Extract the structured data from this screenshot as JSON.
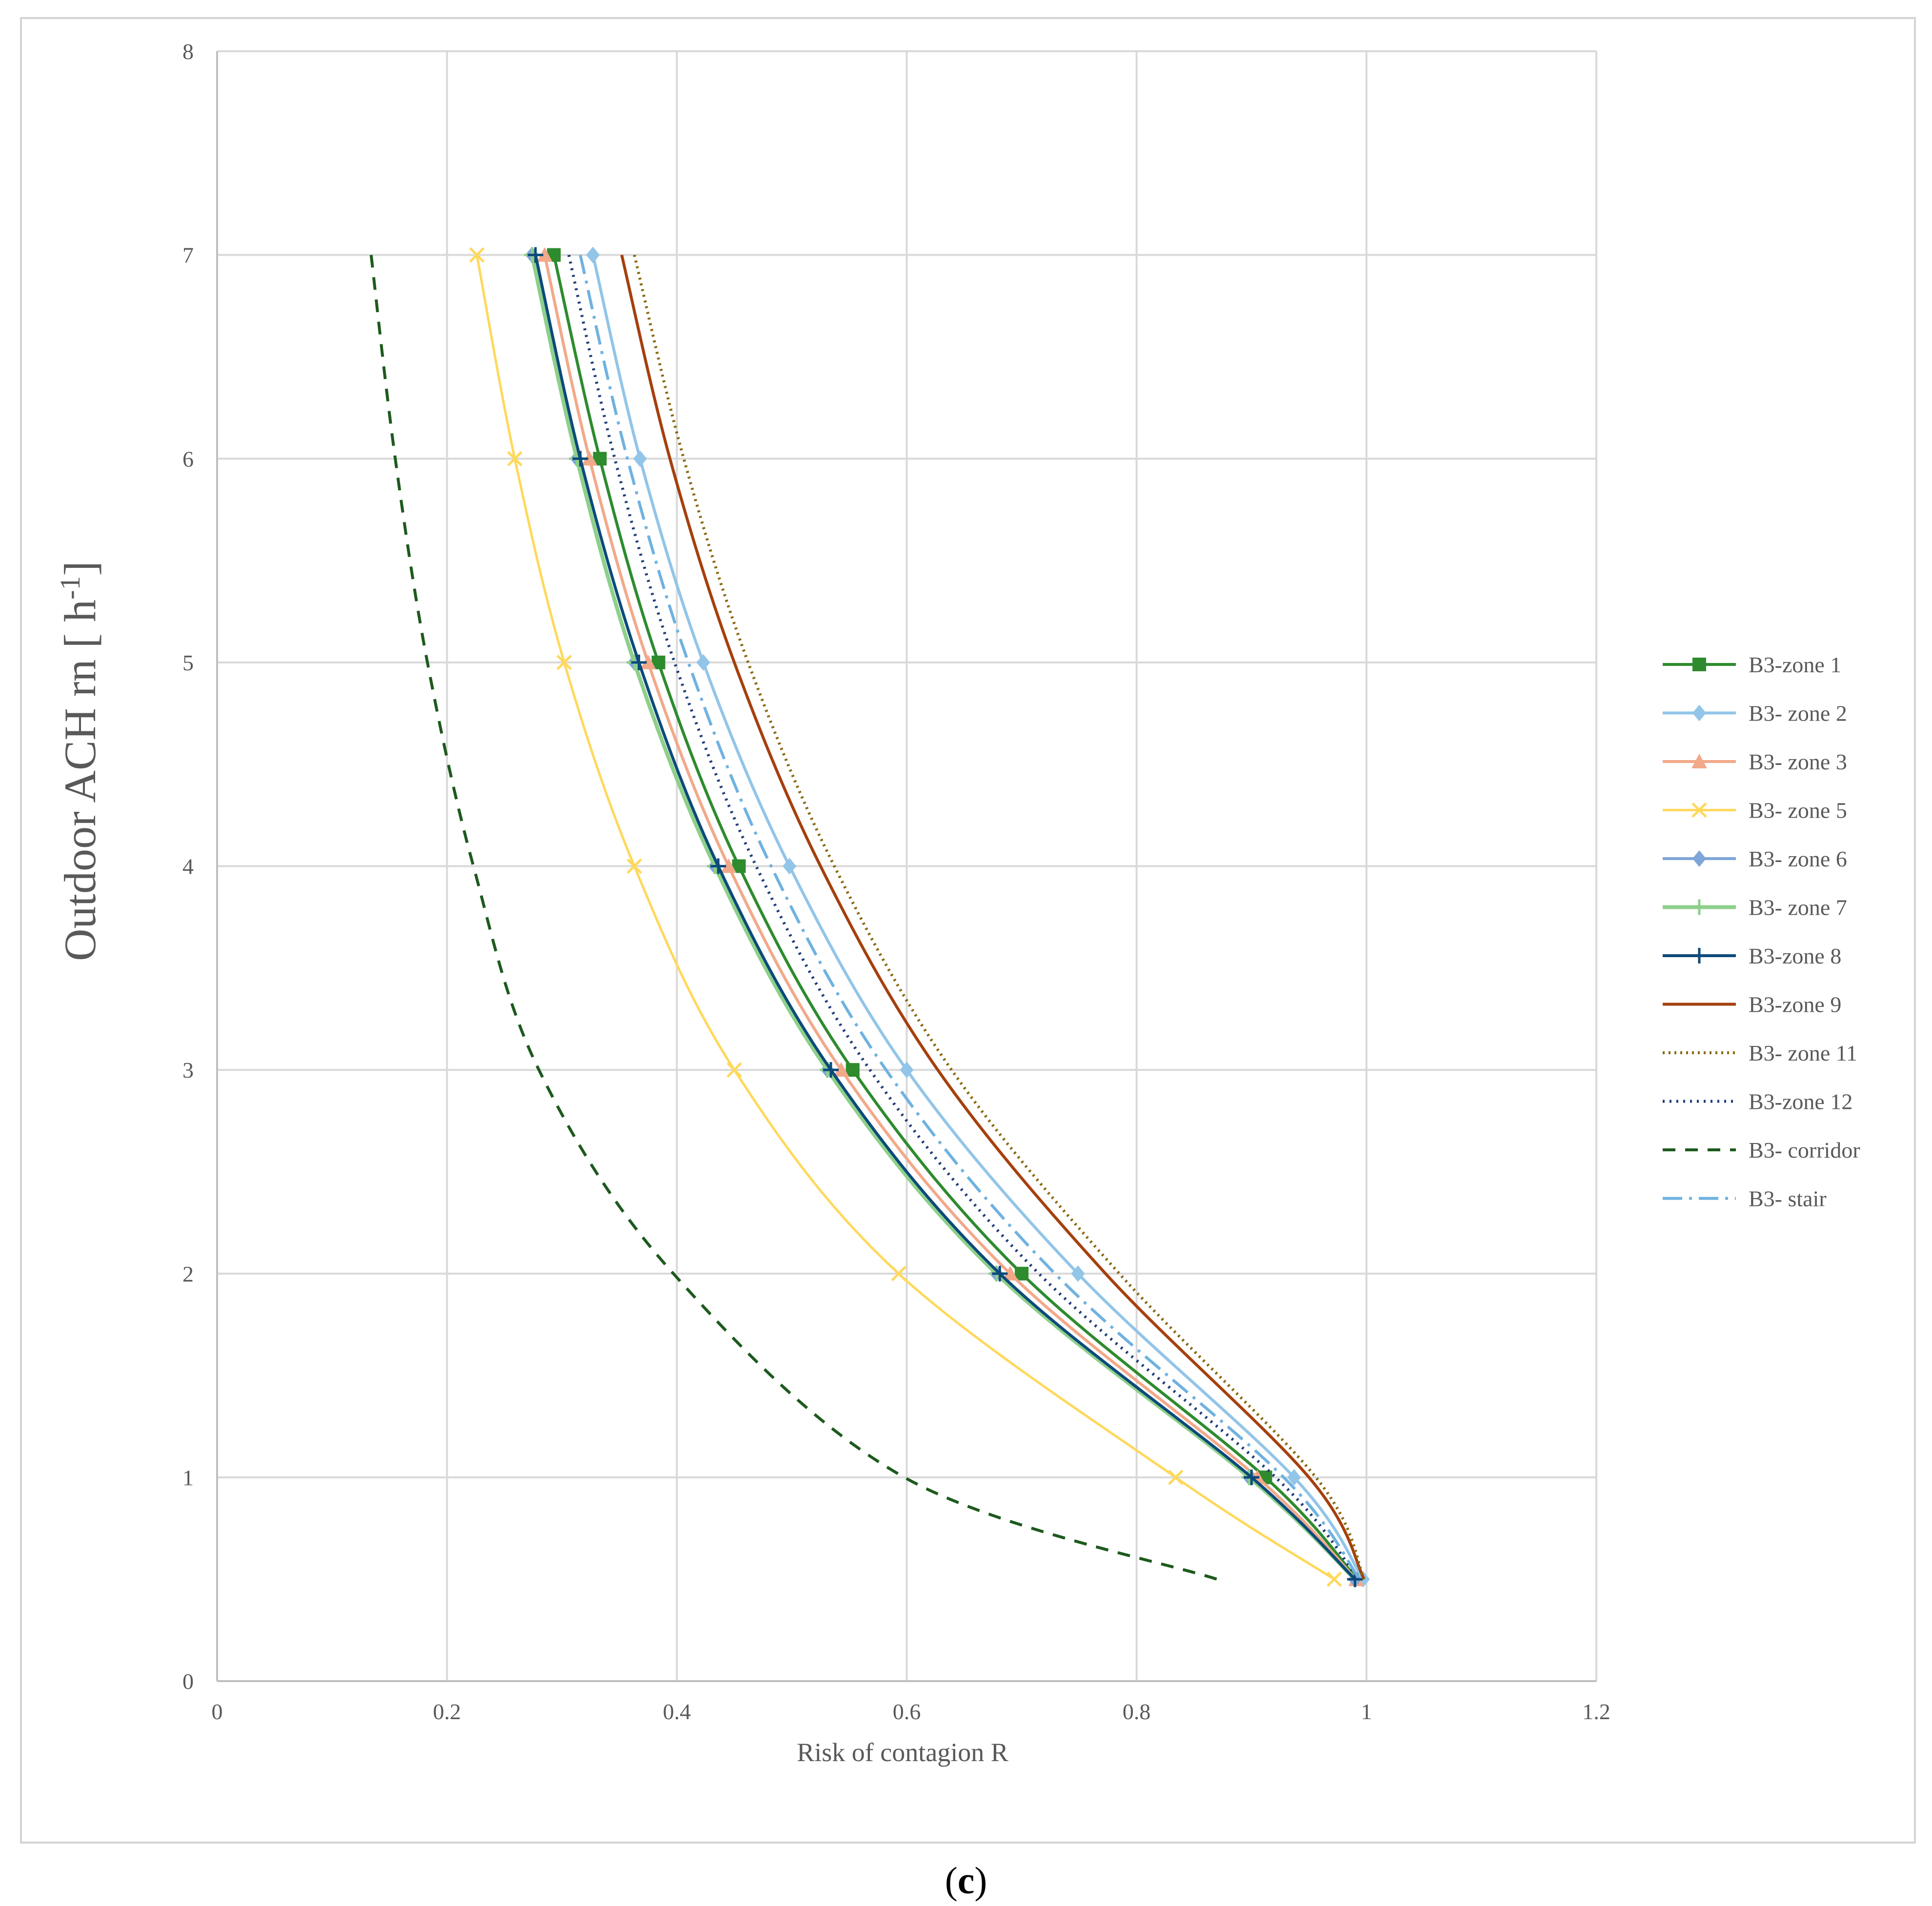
{
  "chart_data": {
    "type": "line",
    "title": "",
    "xlabel": "Risk of contagion R",
    "ylabel": "Outdoor ACH rn [ h-1]",
    "ylabel_parts": {
      "main": "Outdoor ACH rn [ h",
      "sup": "-1",
      "close": "]"
    },
    "xlim": [
      0,
      1.2
    ],
    "ylim": [
      0,
      8
    ],
    "x_ticks": [
      0,
      0.2,
      0.4,
      0.6,
      0.8,
      1,
      1.2
    ],
    "x_tick_labels": [
      "0",
      "0.2",
      "0.4",
      "0.6",
      "0.8",
      "1",
      "1.2"
    ],
    "y_ticks": [
      0,
      1,
      2,
      3,
      4,
      5,
      6,
      7,
      8
    ],
    "y_tick_labels": [
      "0",
      "1",
      "2",
      "3",
      "4",
      "5",
      "6",
      "7",
      "8"
    ],
    "grid": true,
    "legend_position": "right",
    "series": [
      {
        "name": "B3-zone 1",
        "color": "#2e8b2e",
        "dash": "",
        "marker": "square",
        "width": 6,
        "x": [
          0.293,
          0.333,
          0.384,
          0.454,
          0.553,
          0.7,
          0.912,
          0.992
        ],
        "y": [
          7,
          6,
          5,
          4,
          3,
          2,
          1,
          0.5
        ]
      },
      {
        "name": "B3- zone 2",
        "color": "#92c5e8",
        "dash": "",
        "marker": "diamond",
        "width": 6,
        "x": [
          0.327,
          0.368,
          0.423,
          0.498,
          0.6,
          0.749,
          0.937,
          0.997
        ],
        "y": [
          7,
          6,
          5,
          4,
          3,
          2,
          1,
          0.5
        ]
      },
      {
        "name": "B3- zone 3",
        "color": "#f2a98a",
        "dash": "",
        "marker": "triangle",
        "width": 6,
        "x": [
          0.285,
          0.324,
          0.375,
          0.445,
          0.543,
          0.69,
          0.905,
          0.991
        ],
        "y": [
          7,
          6,
          5,
          4,
          3,
          2,
          1,
          0.5
        ]
      },
      {
        "name": "B3- zone 5",
        "color": "#ffd85c",
        "dash": "",
        "marker": "x",
        "width": 5,
        "x": [
          0.226,
          0.259,
          0.302,
          0.363,
          0.45,
          0.593,
          0.834,
          0.972
        ],
        "y": [
          7,
          6,
          5,
          4,
          3,
          2,
          1,
          0.5
        ]
      },
      {
        "name": "B3- zone 6",
        "color": "#7ea6d8",
        "dash": "",
        "marker": "diamond",
        "width": 6,
        "x": [
          0.274,
          0.313,
          0.363,
          0.433,
          0.531,
          0.678,
          0.898,
          0.99
        ],
        "y": [
          7,
          6,
          5,
          4,
          3,
          2,
          1,
          0.5
        ]
      },
      {
        "name": "B3- zone 7",
        "color": "#8dd08a",
        "dash": "",
        "marker": "plus",
        "width": 8,
        "x": [
          0.274,
          0.313,
          0.363,
          0.433,
          0.531,
          0.678,
          0.898,
          0.99
        ],
        "y": [
          7,
          6,
          5,
          4,
          3,
          2,
          1,
          0.5
        ]
      },
      {
        "name": "B3-zone 8",
        "color": "#0d4a7a",
        "dash": "",
        "marker": "plus",
        "width": 6,
        "x": [
          0.277,
          0.316,
          0.367,
          0.436,
          0.534,
          0.681,
          0.9,
          0.99
        ],
        "y": [
          7,
          6,
          5,
          4,
          3,
          2,
          1,
          0.5
        ]
      },
      {
        "name": "B3-zone 9",
        "color": "#a5400e",
        "dash": "",
        "marker": "none",
        "width": 6,
        "x": [
          0.352,
          0.394,
          0.45,
          0.525,
          0.627,
          0.773,
          0.95,
          0.998
        ],
        "y": [
          7,
          6,
          5,
          4,
          3,
          2,
          1,
          0.5
        ]
      },
      {
        "name": "B3- zone 11",
        "color": "#8a6a10",
        "dash": "4 8",
        "marker": "none",
        "width": 6,
        "x": [
          0.363,
          0.406,
          0.462,
          0.537,
          0.639,
          0.785,
          0.956,
          0.998
        ],
        "y": [
          7,
          6,
          5,
          4,
          3,
          2,
          1,
          0.5
        ]
      },
      {
        "name": "B3-zone 12",
        "color": "#1e3c78",
        "dash": "4 10",
        "marker": "none",
        "width": 6,
        "x": [
          0.306,
          0.346,
          0.398,
          0.469,
          0.568,
          0.715,
          0.921,
          0.993
        ],
        "y": [
          7,
          6,
          5,
          4,
          3,
          2,
          1,
          0.5
        ]
      },
      {
        "name": "B3- corridor",
        "color": "#1d5a1d",
        "dash": "26 20",
        "marker": "none",
        "width": 6,
        "x": [
          0.134,
          0.155,
          0.183,
          0.223,
          0.28,
          0.397,
          0.598,
          0.87
        ],
        "y": [
          7,
          6,
          5,
          4,
          3,
          2,
          1,
          0.5
        ]
      },
      {
        "name": "B3- stair",
        "color": "#6fb2e0",
        "dash": "40 14 6 14",
        "marker": "none",
        "width": 6,
        "x": [
          0.316,
          0.357,
          0.41,
          0.482,
          0.582,
          0.729,
          0.928,
          0.994
        ],
        "y": [
          7,
          6,
          5,
          4,
          3,
          2,
          1,
          0.5
        ]
      }
    ]
  },
  "caption": {
    "label": "c",
    "open": "(",
    "close": ")"
  }
}
